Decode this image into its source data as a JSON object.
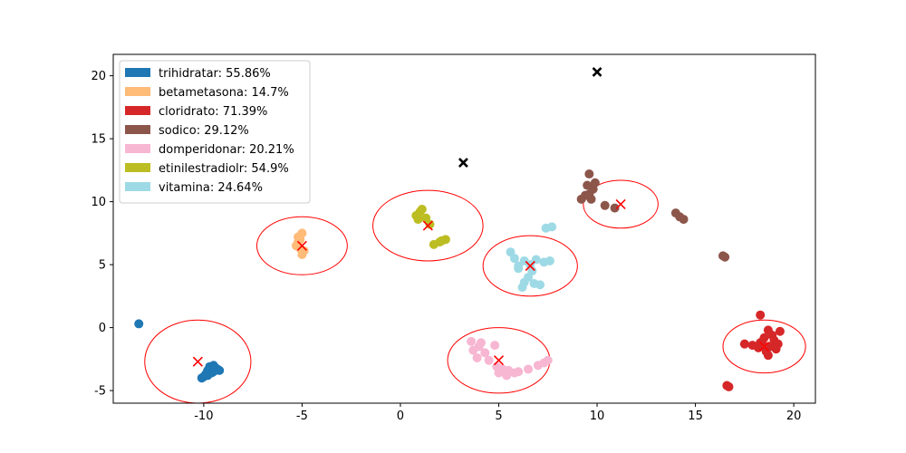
{
  "chart_data": {
    "type": "scatter",
    "xlim": [
      -14.6,
      21.1
    ],
    "ylim": [
      -6.0,
      21.7
    ],
    "x_ticks": [
      -10,
      -5,
      0,
      5,
      10,
      15,
      20
    ],
    "y_ticks": [
      -5,
      0,
      5,
      10,
      15,
      20
    ],
    "grid": false,
    "legend_position": "top-left",
    "series": [
      {
        "name": "trihidratar: 55.86%",
        "color": "#1f77b4",
        "points": [
          [
            -13.3,
            0.3
          ],
          [
            -9.7,
            -3.1
          ],
          [
            -9.6,
            -3.3
          ],
          [
            -9.8,
            -3.4
          ],
          [
            -9.5,
            -3.5
          ],
          [
            -9.3,
            -3.3
          ],
          [
            -9.9,
            -3.7
          ],
          [
            -10.0,
            -3.9
          ],
          [
            -9.6,
            -3.6
          ],
          [
            -9.4,
            -3.2
          ],
          [
            -9.5,
            -3.0
          ],
          [
            -9.8,
            -3.8
          ],
          [
            -10.1,
            -4.0
          ],
          [
            -9.2,
            -3.4
          ]
        ],
        "centroid": [
          -10.3,
          -2.7
        ],
        "ellipse": {
          "rx": 2.7,
          "ry": 3.3
        }
      },
      {
        "name": "betametasona: 14.7%",
        "color": "#ffbb78",
        "points": [
          [
            -5.1,
            7.0
          ],
          [
            -5.0,
            7.5
          ],
          [
            -5.2,
            6.8
          ],
          [
            -5.3,
            6.5
          ],
          [
            -4.9,
            6.1
          ],
          [
            -5.0,
            5.8
          ],
          [
            -5.1,
            6.3
          ],
          [
            -5.2,
            7.2
          ]
        ],
        "centroid": [
          -5.0,
          6.5
        ],
        "ellipse": {
          "rx": 2.3,
          "ry": 2.3
        }
      },
      {
        "name": "cloridrato: 71.39%",
        "color": "#d62728",
        "points": [
          [
            18.3,
            1.0
          ],
          [
            18.7,
            -0.2
          ],
          [
            19.3,
            -0.3
          ],
          [
            18.5,
            -0.8
          ],
          [
            18.9,
            -0.6
          ],
          [
            19.0,
            -1.0
          ],
          [
            18.4,
            -1.1
          ],
          [
            19.2,
            -1.3
          ],
          [
            18.8,
            -1.5
          ],
          [
            17.5,
            -1.3
          ],
          [
            17.9,
            -1.4
          ],
          [
            18.2,
            -1.6
          ],
          [
            18.6,
            -1.9
          ],
          [
            19.1,
            -1.7
          ],
          [
            18.7,
            -2.2
          ],
          [
            18.3,
            -1.2
          ],
          [
            16.6,
            -4.6
          ],
          [
            16.7,
            -4.7
          ]
        ],
        "centroid": [
          18.5,
          -1.5
        ],
        "ellipse": {
          "rx": 2.1,
          "ry": 2.1
        }
      },
      {
        "name": "sodico: 29.12%",
        "color": "#8c564b",
        "points": [
          [
            9.6,
            12.2
          ],
          [
            9.5,
            11.3
          ],
          [
            9.8,
            11.0
          ],
          [
            9.9,
            11.5
          ],
          [
            9.4,
            10.5
          ],
          [
            9.7,
            10.2
          ],
          [
            9.2,
            10.2
          ],
          [
            9.6,
            10.6
          ],
          [
            10.4,
            9.7
          ],
          [
            10.9,
            9.5
          ],
          [
            14.0,
            9.1
          ],
          [
            14.2,
            8.8
          ],
          [
            14.4,
            8.6
          ],
          [
            16.4,
            5.7
          ],
          [
            16.5,
            5.6
          ]
        ],
        "centroid": [
          11.2,
          9.8
        ],
        "ellipse": {
          "rx": 1.9,
          "ry": 1.9
        }
      },
      {
        "name": "domperidonar: 20.21%",
        "color": "#f7b6d2",
        "points": [
          [
            3.6,
            -1.1
          ],
          [
            3.7,
            -1.8
          ],
          [
            4.0,
            -1.5
          ],
          [
            4.3,
            -2.0
          ],
          [
            3.9,
            -2.4
          ],
          [
            4.5,
            -2.6
          ],
          [
            4.9,
            -3.1
          ],
          [
            5.2,
            -3.3
          ],
          [
            5.5,
            -3.4
          ],
          [
            5.8,
            -3.6
          ],
          [
            5.4,
            -3.8
          ],
          [
            6.0,
            -3.5
          ],
          [
            6.5,
            -3.3
          ],
          [
            7.0,
            -3.0
          ],
          [
            7.3,
            -2.8
          ],
          [
            7.5,
            -2.6
          ],
          [
            4.8,
            -1.4
          ],
          [
            4.1,
            -1.2
          ],
          [
            5.0,
            -3.6
          ]
        ],
        "centroid": [
          5.0,
          -2.6
        ],
        "ellipse": {
          "rx": 2.6,
          "ry": 2.6
        }
      },
      {
        "name": "etinilestradiolr: 54.9%",
        "color": "#bcbd22",
        "points": [
          [
            1.1,
            9.4
          ],
          [
            1.0,
            9.2
          ],
          [
            0.8,
            8.9
          ],
          [
            0.9,
            8.6
          ],
          [
            1.3,
            8.7
          ],
          [
            1.5,
            8.2
          ],
          [
            1.7,
            6.6
          ],
          [
            2.0,
            6.8
          ],
          [
            2.3,
            7.0
          ],
          [
            2.1,
            6.9
          ]
        ],
        "centroid": [
          1.4,
          8.1
        ],
        "ellipse": {
          "rx": 2.8,
          "ry": 2.8
        }
      },
      {
        "name": "vitamina: 24.64%",
        "color": "#9edae5",
        "points": [
          [
            5.6,
            6.0
          ],
          [
            5.8,
            5.5
          ],
          [
            6.0,
            4.9
          ],
          [
            6.3,
            5.3
          ],
          [
            6.6,
            5.0
          ],
          [
            6.9,
            5.4
          ],
          [
            7.3,
            5.2
          ],
          [
            7.6,
            5.3
          ],
          [
            6.7,
            4.5
          ],
          [
            6.5,
            4.0
          ],
          [
            6.3,
            3.6
          ],
          [
            6.2,
            3.2
          ],
          [
            6.8,
            3.5
          ],
          [
            7.1,
            3.4
          ],
          [
            7.4,
            7.9
          ],
          [
            7.7,
            8.0
          ],
          [
            6.0,
            4.7
          ]
        ],
        "centroid": [
          6.6,
          4.9
        ],
        "ellipse": {
          "rx": 2.4,
          "ry": 2.4
        }
      }
    ],
    "extra_markers": [
      {
        "x": 3.2,
        "y": 13.1,
        "marker": "x",
        "color": "#000000"
      },
      {
        "x": 10.0,
        "y": 20.3,
        "marker": "x",
        "color": "#000000"
      }
    ],
    "ellipse_color": "#ff0000"
  }
}
